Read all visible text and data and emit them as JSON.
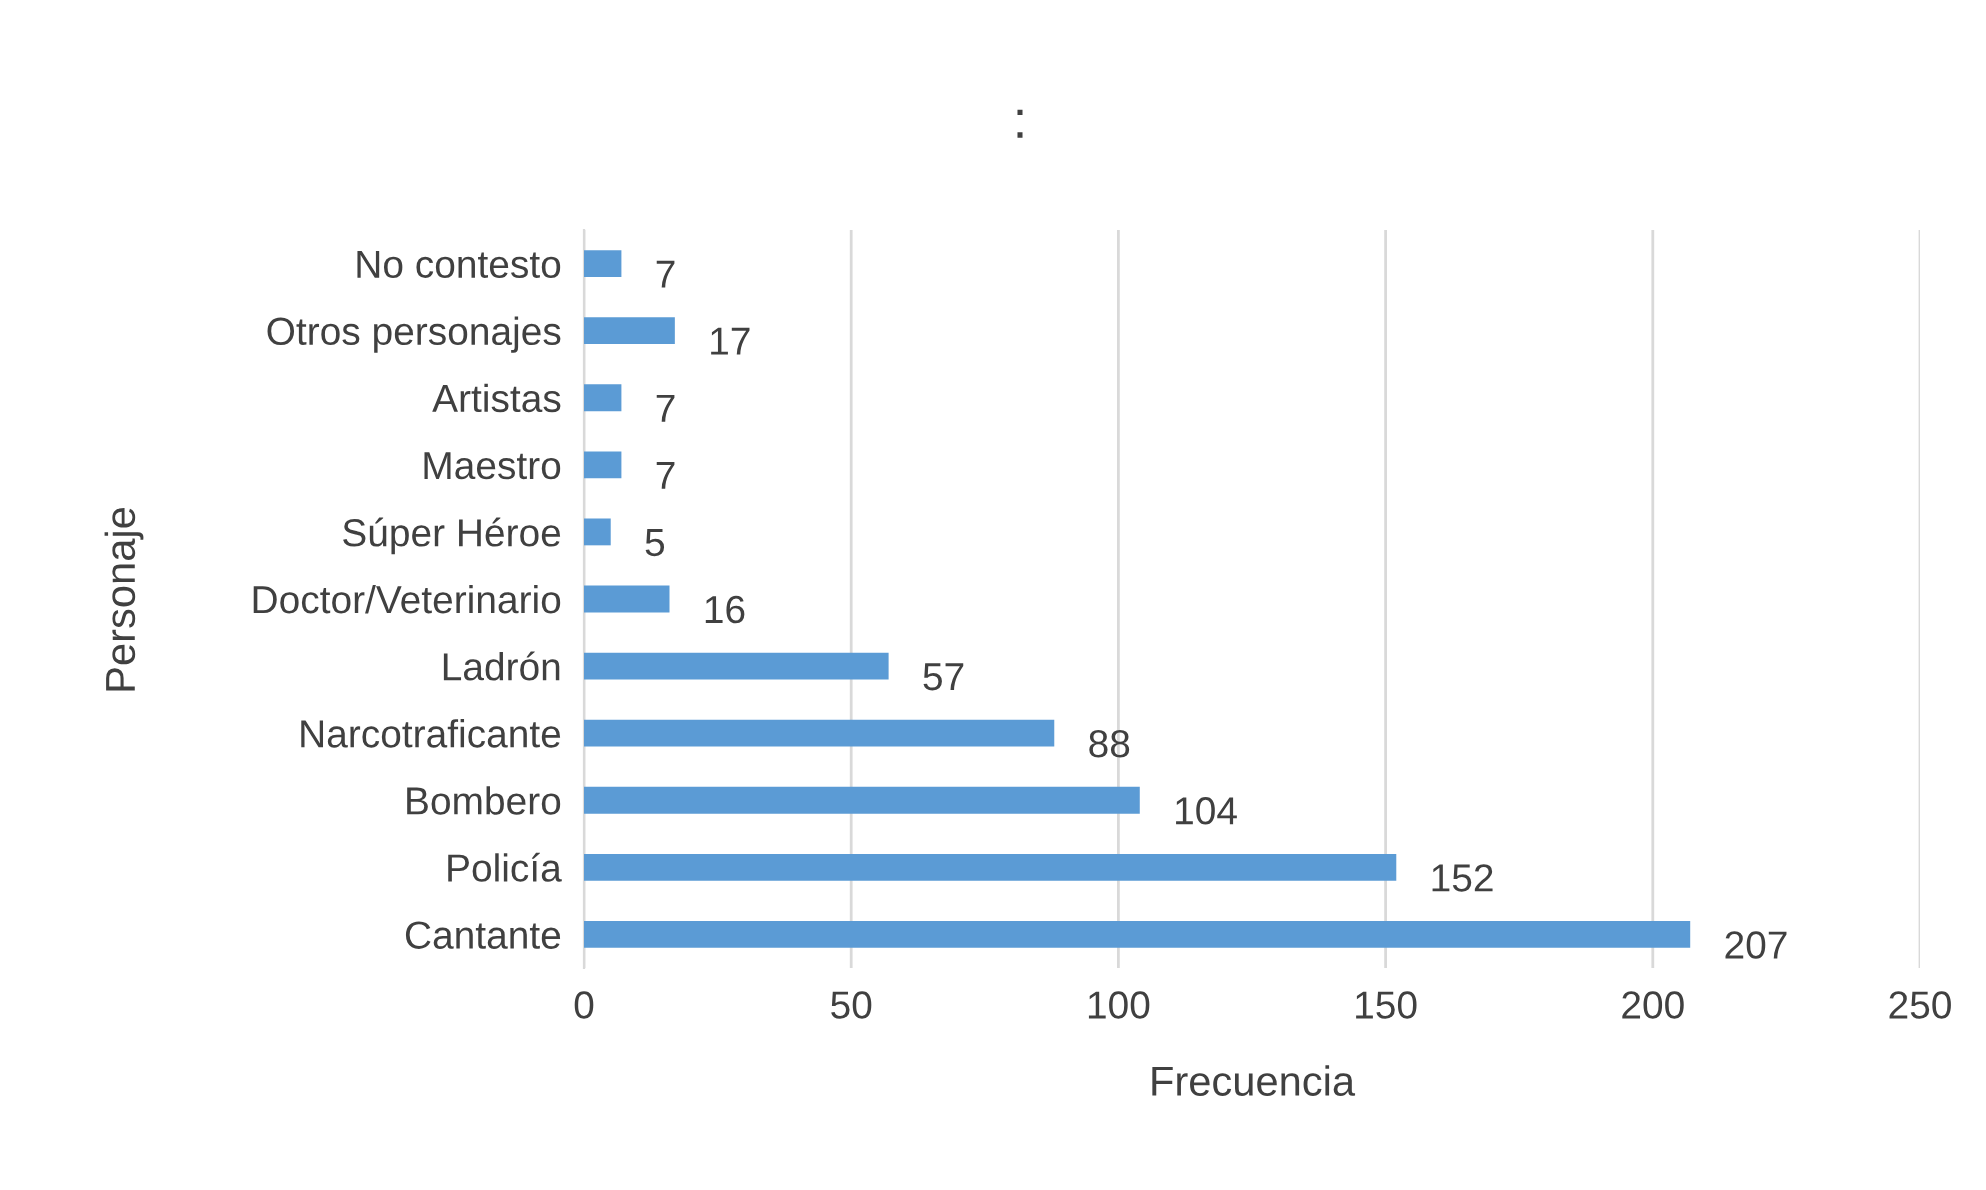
{
  "chart_data": {
    "type": "bar",
    "orientation": "horizontal",
    "title": ":",
    "xlabel": "Frecuencia",
    "ylabel": "Personaje",
    "categories": [
      "No contesto",
      "Otros personajes",
      "Artistas",
      "Maestro",
      "Súper Héroe",
      "Doctor/Veterinario",
      "Ladrón",
      "Narcotraficante",
      "Bombero",
      "Policía",
      "Cantante"
    ],
    "values": [
      7,
      17,
      7,
      7,
      5,
      16,
      57,
      88,
      104,
      152,
      207
    ],
    "color": "#5b9bd5",
    "xlim": [
      0,
      250
    ],
    "xticks": [
      0,
      50,
      100,
      150,
      200,
      250
    ],
    "grid": "x",
    "data_labels": true,
    "legend": false
  }
}
